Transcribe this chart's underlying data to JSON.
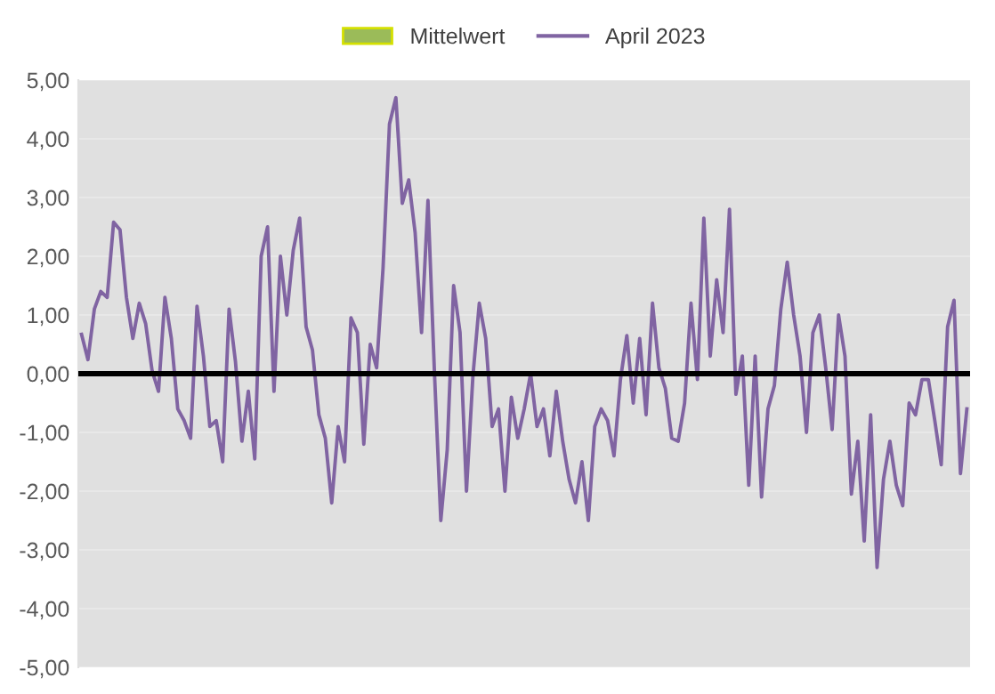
{
  "chart_data": {
    "type": "line",
    "categories": [
      null,
      null,
      null,
      null,
      null,
      null,
      null,
      null,
      null,
      null,
      null,
      null,
      null,
      null,
      null,
      null,
      null,
      null,
      null,
      null,
      null,
      null,
      null,
      null,
      null,
      null,
      null,
      null,
      null,
      null,
      null,
      null,
      null,
      null,
      null,
      null,
      null,
      null,
      null,
      null,
      null,
      null,
      null,
      null,
      null,
      null,
      null,
      null,
      null,
      null,
      null,
      null,
      null,
      null,
      null,
      null,
      null,
      null,
      null,
      null,
      null,
      null,
      null,
      null,
      null,
      null,
      null,
      null,
      null,
      null,
      null,
      null,
      null,
      null,
      null,
      null,
      null,
      null,
      null,
      null,
      null,
      null,
      null,
      null,
      null,
      null,
      null,
      null,
      null,
      null,
      null,
      null,
      null,
      null,
      null,
      null,
      null,
      null,
      null,
      null,
      null,
      null,
      null,
      null,
      null,
      null,
      null,
      null,
      null,
      null,
      null,
      null,
      null,
      null,
      null,
      null,
      null,
      null,
      null,
      null,
      null,
      null,
      null,
      null,
      null,
      null,
      null,
      null,
      null,
      null,
      null,
      null,
      null,
      null,
      null,
      null,
      null,
      null,
      null
    ],
    "series": [
      {
        "name": "Mittelwert",
        "type": "area",
        "color": "#9bbb59",
        "values": [
          null,
          null,
          null,
          null,
          null,
          null,
          null,
          null,
          null,
          null,
          null,
          null,
          null,
          null,
          null,
          null,
          null,
          null,
          null,
          null,
          null,
          null,
          null,
          null,
          null,
          null,
          null,
          null,
          null,
          null,
          null,
          null,
          null,
          null,
          null,
          null,
          null,
          null,
          null,
          null,
          null,
          null,
          null,
          null,
          null,
          null,
          null,
          null,
          null,
          null,
          null,
          null,
          null,
          null,
          null,
          null,
          null,
          null,
          null,
          null,
          null,
          null,
          null,
          null,
          null,
          null,
          null,
          null,
          null,
          null,
          null,
          null,
          null,
          null,
          null,
          null,
          null,
          null,
          null,
          null,
          null,
          null,
          null,
          null,
          null,
          null,
          null,
          null,
          null,
          null,
          null,
          null,
          null,
          null,
          null,
          null,
          null,
          null,
          null,
          null,
          null,
          null,
          null,
          null,
          null,
          null,
          null,
          null,
          null,
          null,
          null,
          null,
          null,
          null,
          null,
          null,
          null,
          null,
          null,
          null,
          null,
          null,
          null,
          null,
          null,
          null,
          null,
          null,
          null,
          null,
          null,
          null,
          null,
          null,
          null,
          null,
          null,
          null,
          null
        ]
      },
      {
        "name": "April 2023",
        "color": "#8064a2",
        "values": [
          0.67,
          0.24,
          1.1,
          1.4,
          1.3,
          2.58,
          2.45,
          1.3,
          0.6,
          1.2,
          0.85,
          0.05,
          -0.3,
          1.3,
          0.6,
          -0.6,
          -0.8,
          -1.1,
          1.15,
          0.3,
          -0.9,
          -0.8,
          -1.5,
          1.1,
          0.2,
          -1.15,
          -0.3,
          -1.45,
          2.0,
          2.5,
          -0.3,
          2.0,
          1.0,
          2.1,
          2.65,
          0.8,
          0.4,
          -0.7,
          -1.1,
          -2.2,
          -0.9,
          -1.5,
          0.95,
          0.7,
          -1.2,
          0.5,
          0.1,
          1.8,
          4.25,
          4.7,
          2.9,
          3.3,
          2.4,
          0.7,
          2.95,
          0.05,
          -2.5,
          -1.3,
          1.5,
          0.7,
          -2.0,
          -0.05,
          1.2,
          0.6,
          -0.9,
          -0.6,
          -2.0,
          -0.4,
          -1.1,
          -0.6,
          0,
          -0.9,
          -0.6,
          -1.4,
          -0.3,
          -1.15,
          -1.8,
          -2.2,
          -1.5,
          -2.5,
          -0.9,
          -0.6,
          -0.8,
          -1.4,
          -0.1,
          0.65,
          -0.5,
          0.6,
          -0.7,
          1.2,
          0.1,
          -0.25,
          -1.1,
          -1.15,
          -0.5,
          1.2,
          -0.1,
          2.65,
          0.3,
          1.6,
          0.7,
          2.8,
          -0.35,
          0.3,
          -1.9,
          0.3,
          -2.1,
          -0.6,
          -0.2,
          1.1,
          1.9,
          1.0,
          0.3,
          -1.0,
          0.7,
          1.0,
          0.1,
          -0.95,
          1.0,
          0.3,
          -2.05,
          -1.15,
          -2.85,
          -0.7,
          -3.3,
          -1.8,
          -1.15,
          -1.9,
          -2.25,
          -0.5,
          -0.7,
          -0.1,
          -0.1,
          -0.8,
          -1.55,
          0.8,
          1.25,
          -1.7,
          -0.6
        ]
      }
    ],
    "ylim": [
      -5,
      5
    ],
    "yticks": [
      {
        "value": -5,
        "label": "-5,00"
      },
      {
        "value": -4,
        "label": "-4,00"
      },
      {
        "value": -3,
        "label": "-3,00"
      },
      {
        "value": -2,
        "label": "-2,00"
      },
      {
        "value": -1,
        "label": "-1,00"
      },
      {
        "value": 0,
        "label": "0,00"
      },
      {
        "value": 1,
        "label": "1,00"
      },
      {
        "value": 2,
        "label": "2,00"
      },
      {
        "value": 3,
        "label": "3,00"
      },
      {
        "value": 4,
        "label": "4,00"
      },
      {
        "value": 5,
        "label": "5,00"
      }
    ],
    "ref_lines": [
      {
        "axis": "y",
        "value": 0,
        "color": "#000000"
      }
    ],
    "grid": "y",
    "legend": "top"
  }
}
